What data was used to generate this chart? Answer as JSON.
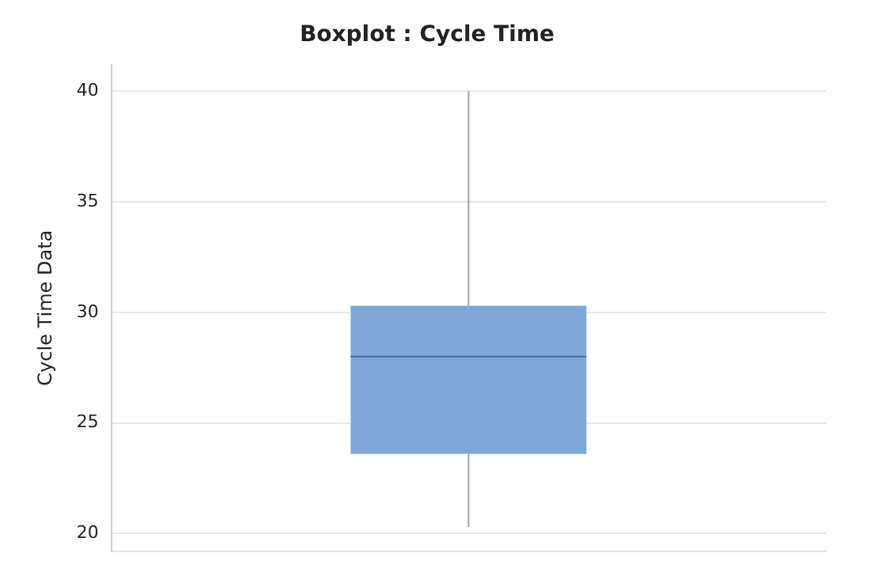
{
  "chart_data": {
    "type": "box",
    "title": "Boxplot : Cycle Time",
    "ylabel": "Cycle Time Data",
    "categories": [
      null
    ],
    "boxes": [
      {
        "low": 20.3,
        "q1": 23.6,
        "median": 28.0,
        "q3": 30.3,
        "high": 40
      }
    ],
    "color": "#7ea6d8",
    "ylim": [
      19.2,
      41.2
    ],
    "yticks": [
      20,
      25,
      30,
      35,
      40
    ],
    "grid": "y"
  }
}
